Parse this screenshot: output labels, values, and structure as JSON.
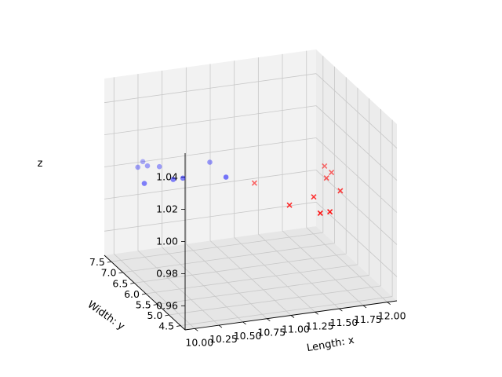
{
  "chart_data": {
    "type": "scatter",
    "projection": "3d",
    "title": "",
    "xlabel": "Length: x",
    "ylabel": "Width: y",
    "zlabel": "z",
    "x_ticks": [
      "10.00",
      "10.25",
      "10.50",
      "10.75",
      "11.00",
      "11.25",
      "11.50",
      "11.75",
      "12.00"
    ],
    "y_ticks": [
      "4.5",
      "5.0",
      "5.5",
      "6.0",
      "6.5",
      "7.0",
      "7.5"
    ],
    "z_ticks": [
      "0.96",
      "0.98",
      "1.00",
      "1.02",
      "1.04"
    ],
    "xlim": [
      9.9,
      12.1
    ],
    "ylim": [
      4.3,
      7.8
    ],
    "zlim": [
      0.945,
      1.055
    ],
    "grid": true,
    "series": [
      {
        "marker": "circle",
        "color": "#0000ff",
        "points": [
          {
            "x": 10.2,
            "y": 7.6,
            "z": 1.0
          },
          {
            "x": 10.3,
            "y": 7.6,
            "z": 1.0
          },
          {
            "x": 10.4,
            "y": 7.5,
            "z": 1.0
          },
          {
            "x": 10.9,
            "y": 7.4,
            "z": 1.0
          },
          {
            "x": 10.1,
            "y": 6.9,
            "z": 1.0
          },
          {
            "x": 10.4,
            "y": 6.9,
            "z": 1.0
          },
          {
            "x": 10.5,
            "y": 6.9,
            "z": 1.0
          },
          {
            "x": 10.9,
            "y": 6.7,
            "z": 1.0
          },
          {
            "x": 10.3,
            "y": 7.8,
            "z": 1.0
          }
        ]
      },
      {
        "marker": "x",
        "color": "#ff0000",
        "points": [
          {
            "x": 11.1,
            "y": 6.3,
            "z": 1.0
          },
          {
            "x": 11.2,
            "y": 5.2,
            "z": 1.0
          },
          {
            "x": 11.5,
            "y": 4.7,
            "z": 1.0
          },
          {
            "x": 11.8,
            "y": 5.5,
            "z": 1.0
          },
          {
            "x": 11.9,
            "y": 6.3,
            "z": 1.0
          },
          {
            "x": 11.9,
            "y": 6.6,
            "z": 1.0
          },
          {
            "x": 11.4,
            "y": 4.7,
            "z": 1.0
          },
          {
            "x": 11.5,
            "y": 5.4,
            "z": 1.0
          },
          {
            "x": 11.8,
            "y": 6.1,
            "z": 1.0
          }
        ]
      }
    ]
  }
}
